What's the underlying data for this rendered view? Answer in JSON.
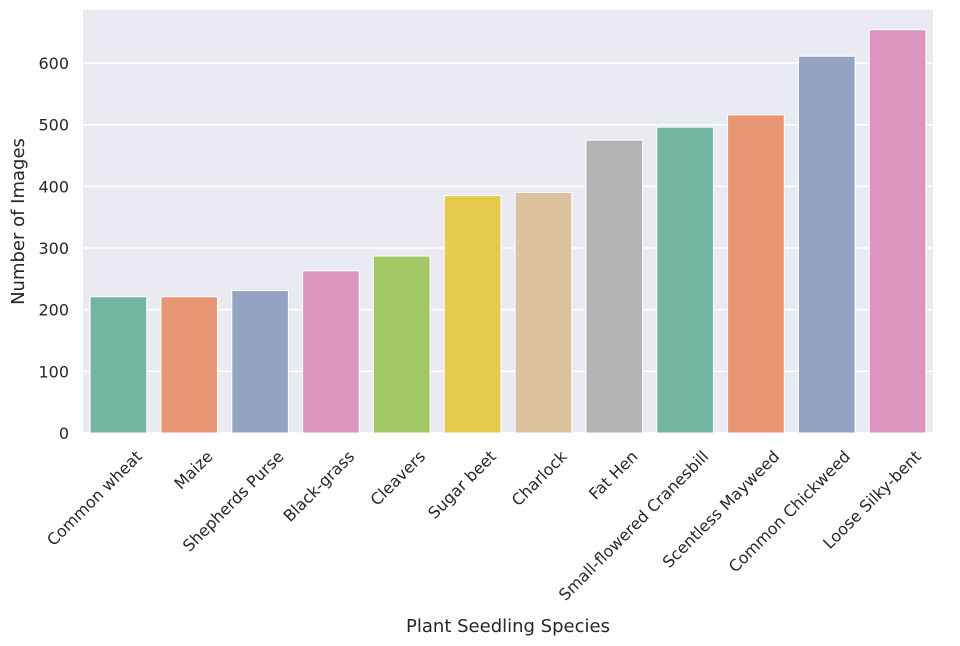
{
  "chart_data": {
    "type": "bar",
    "categories": [
      "Common wheat",
      "Maize",
      "Shepherds Purse",
      "Black-grass",
      "Cleavers",
      "Sugar beet",
      "Charlock",
      "Fat Hen",
      "Small-flowered Cranesbill",
      "Scentless Mayweed",
      "Common Chickweed",
      "Loose Silky-bent"
    ],
    "values": [
      221,
      221,
      231,
      263,
      287,
      385,
      390,
      475,
      496,
      516,
      611,
      654
    ],
    "colors": [
      "#72b6a1",
      "#e99675",
      "#95a3c3",
      "#db96c0",
      "#a2c865",
      "#e5cb4b",
      "#dbc19c",
      "#b3b3b3",
      "#72b6a1",
      "#e99675",
      "#95a3c3",
      "#db96c0"
    ],
    "xlabel": "Plant Seedling Species",
    "ylabel": "Number of Images",
    "yticks": [
      0,
      100,
      200,
      300,
      400,
      500,
      600
    ],
    "ylim": [
      0,
      686
    ],
    "grid": true,
    "background": "#eaeaf2",
    "gridColor": "#ffffff"
  }
}
